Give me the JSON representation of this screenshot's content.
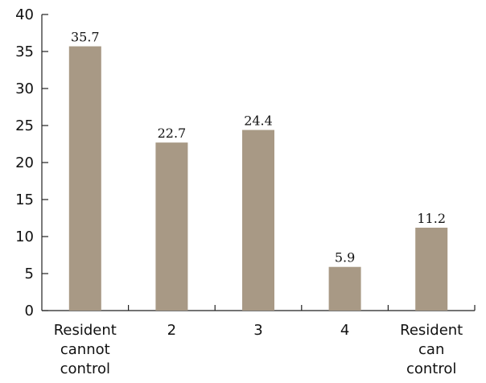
{
  "chart_data": {
    "type": "bar",
    "title": "",
    "xlabel": "",
    "ylabel": "",
    "categories": [
      [
        "Resident",
        "cannot",
        "control"
      ],
      [
        "2"
      ],
      [
        "3"
      ],
      [
        "4"
      ],
      [
        "Resident",
        "can",
        "control"
      ]
    ],
    "values": [
      35.7,
      22.7,
      24.4,
      5.9,
      11.2
    ],
    "value_labels": [
      "35.7",
      "22.7",
      "24.4",
      "5.9",
      "11.2"
    ],
    "ylim": [
      0,
      40
    ],
    "yticks": [
      "0",
      "5",
      "10",
      "15",
      "20",
      "25",
      "30",
      "35",
      "40"
    ],
    "grid": false,
    "legend": "none",
    "colors": {
      "bar": "#a89985",
      "axis": "#222222"
    }
  }
}
